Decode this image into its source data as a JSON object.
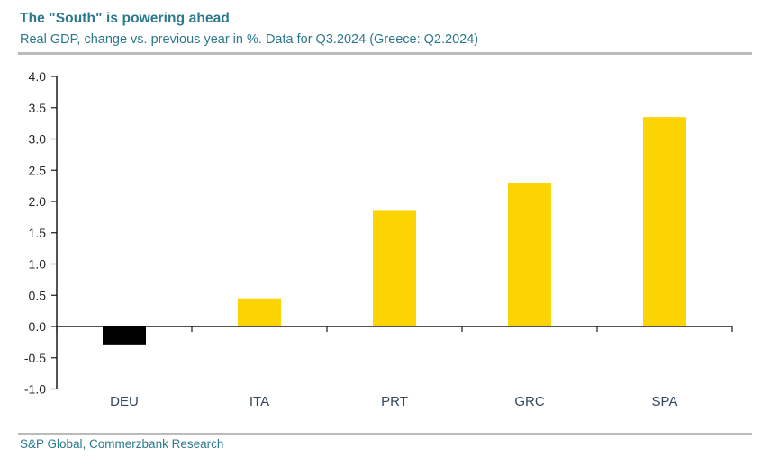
{
  "header": {
    "title": "The \"South\" is powering ahead",
    "subtitle": "Real GDP, change vs. previous year in %. Data for Q3.2024 (Greece: Q2.2024)"
  },
  "footer": {
    "source": "S&P Global, Commerzbank Research"
  },
  "colors": {
    "heading_teal": "#2B7A8C",
    "bar_positive": "#FCD303",
    "bar_negative": "#000000",
    "axis": "#1A1A1A",
    "tick_label": "#262626",
    "category_label": "#33475B",
    "divider_gray": "#BBBBBB"
  },
  "chart_data": {
    "type": "bar",
    "categories": [
      "DEU",
      "ITA",
      "PRT",
      "GRC",
      "SPA"
    ],
    "values": [
      -0.3,
      0.45,
      1.85,
      2.3,
      3.35
    ],
    "bar_colors": [
      "#000000",
      "#FCD303",
      "#FCD303",
      "#FCD303",
      "#FCD303"
    ],
    "title": "The \"South\" is powering ahead",
    "subtitle": "Real GDP, change vs. previous year in %. Data for Q3.2024 (Greece: Q2.2024)",
    "xlabel": "",
    "ylabel": "",
    "ylim": [
      -1.0,
      4.0
    ],
    "ytick_step": 0.5,
    "grid": false,
    "legend": false,
    "baseline": 0.0
  }
}
